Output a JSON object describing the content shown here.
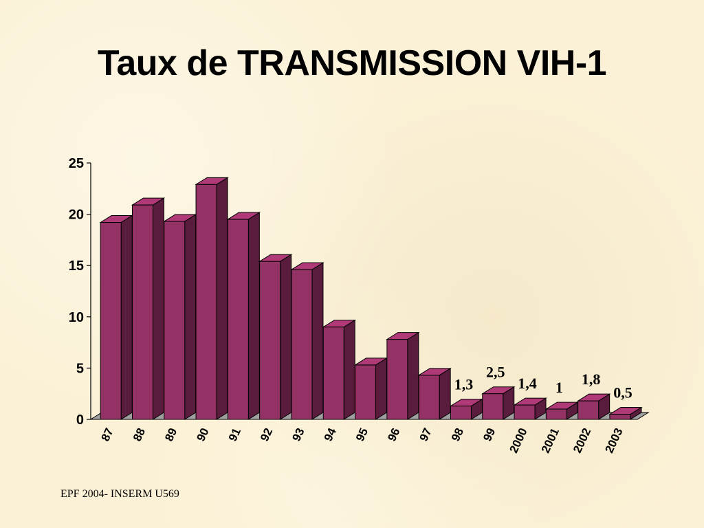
{
  "slide": {
    "title": "Taux de TRANSMISSION VIH-1",
    "footer": "EPF 2004- INSERM U569"
  },
  "colors": {
    "bar_front": "#943266",
    "bar_side": "#5a1c3c",
    "bar_top": "#b03a78",
    "floor": "#a0a0a0"
  },
  "chart_data": {
    "type": "bar",
    "title": "Taux de TRANSMISSION VIH-1",
    "xlabel": "",
    "ylabel": "",
    "ylim": [
      0,
      25
    ],
    "yticks": [
      "0",
      "5",
      "10",
      "15",
      "20",
      "25"
    ],
    "grid": false,
    "legend": "none",
    "categories": [
      "87",
      "88",
      "89",
      "90",
      "91",
      "92",
      "93",
      "94",
      "95",
      "96",
      "97",
      "98",
      "99",
      "2000",
      "2001",
      "2002",
      "2003"
    ],
    "values": [
      19.2,
      20.9,
      19.3,
      22.9,
      19.5,
      15.4,
      14.6,
      9.0,
      5.3,
      7.8,
      4.3,
      1.3,
      2.5,
      1.4,
      1.0,
      1.8,
      0.5
    ],
    "data_labels": [
      "",
      "",
      "",
      "",
      "",
      "",
      "",
      "",
      "",
      "",
      "",
      "1,3",
      "2,5",
      "1,4",
      "1",
      "1,8",
      "0,5"
    ]
  }
}
